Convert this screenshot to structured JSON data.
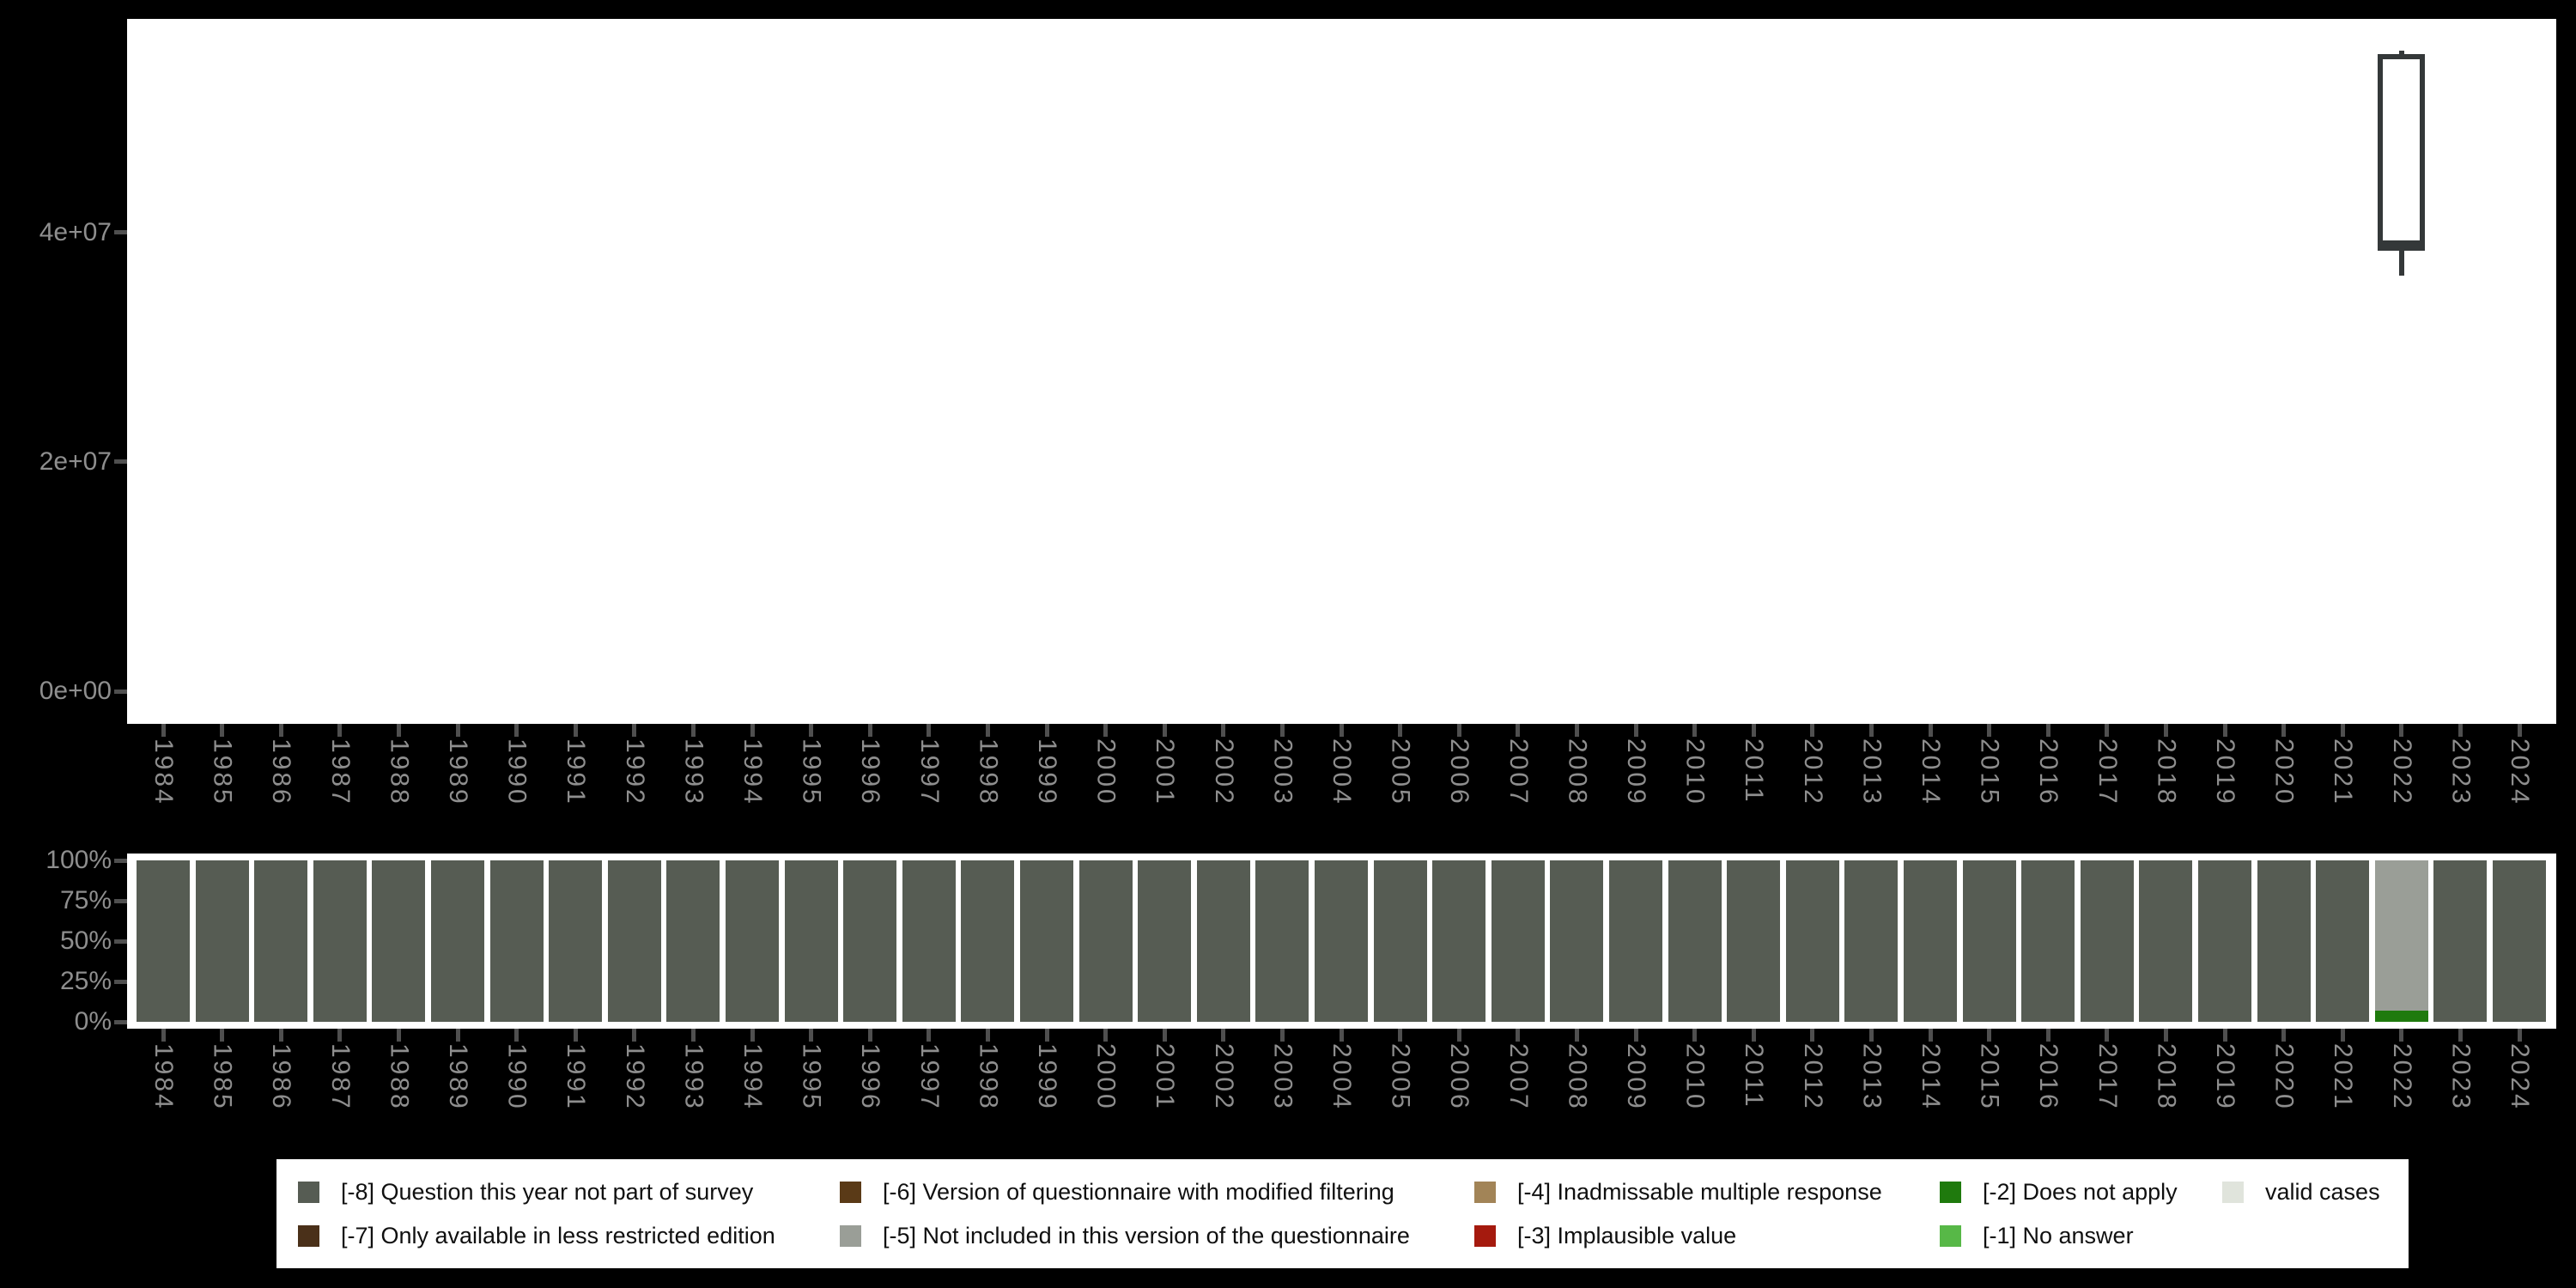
{
  "figure": {
    "background": "#000000",
    "panel_background": "#ffffff",
    "axis_text_color": "#8e8e8e",
    "tick_color": "#4f4f4f",
    "box_outline_color": "#343839"
  },
  "legend": {
    "entries": [
      {
        "key": "-8",
        "label": "[-8] Question this year not part of survey",
        "color": "#565c53"
      },
      {
        "key": "-7",
        "label": "[-7] Only available in less restricted edition",
        "color": "#4a3019"
      },
      {
        "key": "-6",
        "label": "[-6] Version of questionnaire with modified filtering",
        "color": "#5a3a17"
      },
      {
        "key": "-5",
        "label": "[-5] Not included in this version of the questionnaire",
        "color": "#9a9e97"
      },
      {
        "key": "-4",
        "label": "[-4] Inadmissable multiple response",
        "color": "#a28457"
      },
      {
        "key": "-3",
        "label": "[-3] Implausible value",
        "color": "#a51a0e"
      },
      {
        "key": "-2",
        "label": "[-2] Does not apply",
        "color": "#1f7a0d"
      },
      {
        "key": "-1",
        "label": "[-1] No answer",
        "color": "#57b847"
      },
      {
        "key": "valid",
        "label": "valid cases",
        "color": "#e0e4dc"
      }
    ],
    "columns": [
      [
        "-8",
        "-7"
      ],
      [
        "-6",
        "-5"
      ],
      [
        "-4",
        "-3"
      ],
      [
        "-2",
        "-1"
      ],
      [
        "valid"
      ]
    ]
  },
  "chart_data": [
    {
      "type": "boxplot",
      "title": "",
      "xlabel": "",
      "ylabel": "",
      "ytick_labels": [
        "0e+00",
        "2e+07",
        "4e+07"
      ],
      "ytick_values": [
        0,
        20000000,
        40000000
      ],
      "ylim": [
        -2840000,
        58600000
      ],
      "grid": false,
      "categories": [
        "1984",
        "1985",
        "1986",
        "1987",
        "1988",
        "1989",
        "1990",
        "1991",
        "1992",
        "1993",
        "1994",
        "1995",
        "1996",
        "1997",
        "1998",
        "1999",
        "2000",
        "2001",
        "2002",
        "2003",
        "2004",
        "2005",
        "2006",
        "2007",
        "2008",
        "2009",
        "2010",
        "2011",
        "2012",
        "2013",
        "2014",
        "2015",
        "2016",
        "2017",
        "2018",
        "2019",
        "2020",
        "2021",
        "2022",
        "2023",
        "2024"
      ],
      "boxes": [
        {
          "category": "2022",
          "ymin": 36200000,
          "lower": 38400000,
          "median": 39000000,
          "upper": 55500000,
          "ymax": 55800000
        }
      ]
    },
    {
      "type": "bar",
      "stacked": true,
      "unit": "percent",
      "title": "",
      "xlabel": "",
      "ylabel": "",
      "ytick_labels": [
        "0%",
        "25%",
        "50%",
        "75%",
        "100%"
      ],
      "ytick_values": [
        0,
        25,
        50,
        75,
        100
      ],
      "ylim": [
        0,
        100
      ],
      "grid": false,
      "segment_order": "top-to-bottom",
      "bars": [
        {
          "year": "1984",
          "segments": [
            {
              "key": "-8",
              "pct": 100
            }
          ]
        },
        {
          "year": "1985",
          "segments": [
            {
              "key": "-8",
              "pct": 100
            }
          ]
        },
        {
          "year": "1986",
          "segments": [
            {
              "key": "-8",
              "pct": 100
            }
          ]
        },
        {
          "year": "1987",
          "segments": [
            {
              "key": "-8",
              "pct": 100
            }
          ]
        },
        {
          "year": "1988",
          "segments": [
            {
              "key": "-8",
              "pct": 100
            }
          ]
        },
        {
          "year": "1989",
          "segments": [
            {
              "key": "-8",
              "pct": 100
            }
          ]
        },
        {
          "year": "1990",
          "segments": [
            {
              "key": "-8",
              "pct": 100
            }
          ]
        },
        {
          "year": "1991",
          "segments": [
            {
              "key": "-8",
              "pct": 100
            }
          ]
        },
        {
          "year": "1992",
          "segments": [
            {
              "key": "-8",
              "pct": 100
            }
          ]
        },
        {
          "year": "1993",
          "segments": [
            {
              "key": "-8",
              "pct": 100
            }
          ]
        },
        {
          "year": "1994",
          "segments": [
            {
              "key": "-8",
              "pct": 100
            }
          ]
        },
        {
          "year": "1995",
          "segments": [
            {
              "key": "-8",
              "pct": 100
            }
          ]
        },
        {
          "year": "1996",
          "segments": [
            {
              "key": "-8",
              "pct": 100
            }
          ]
        },
        {
          "year": "1997",
          "segments": [
            {
              "key": "-8",
              "pct": 100
            }
          ]
        },
        {
          "year": "1998",
          "segments": [
            {
              "key": "-8",
              "pct": 100
            }
          ]
        },
        {
          "year": "1999",
          "segments": [
            {
              "key": "-8",
              "pct": 100
            }
          ]
        },
        {
          "year": "2000",
          "segments": [
            {
              "key": "-8",
              "pct": 100
            }
          ]
        },
        {
          "year": "2001",
          "segments": [
            {
              "key": "-8",
              "pct": 100
            }
          ]
        },
        {
          "year": "2002",
          "segments": [
            {
              "key": "-8",
              "pct": 100
            }
          ]
        },
        {
          "year": "2003",
          "segments": [
            {
              "key": "-8",
              "pct": 100
            }
          ]
        },
        {
          "year": "2004",
          "segments": [
            {
              "key": "-8",
              "pct": 100
            }
          ]
        },
        {
          "year": "2005",
          "segments": [
            {
              "key": "-8",
              "pct": 100
            }
          ]
        },
        {
          "year": "2006",
          "segments": [
            {
              "key": "-8",
              "pct": 100
            }
          ]
        },
        {
          "year": "2007",
          "segments": [
            {
              "key": "-8",
              "pct": 100
            }
          ]
        },
        {
          "year": "2008",
          "segments": [
            {
              "key": "-8",
              "pct": 100
            }
          ]
        },
        {
          "year": "2009",
          "segments": [
            {
              "key": "-8",
              "pct": 100
            }
          ]
        },
        {
          "year": "2010",
          "segments": [
            {
              "key": "-8",
              "pct": 100
            }
          ]
        },
        {
          "year": "2011",
          "segments": [
            {
              "key": "-8",
              "pct": 100
            }
          ]
        },
        {
          "year": "2012",
          "segments": [
            {
              "key": "-8",
              "pct": 100
            }
          ]
        },
        {
          "year": "2013",
          "segments": [
            {
              "key": "-8",
              "pct": 100
            }
          ]
        },
        {
          "year": "2014",
          "segments": [
            {
              "key": "-8",
              "pct": 100
            }
          ]
        },
        {
          "year": "2015",
          "segments": [
            {
              "key": "-8",
              "pct": 100
            }
          ]
        },
        {
          "year": "2016",
          "segments": [
            {
              "key": "-8",
              "pct": 100
            }
          ]
        },
        {
          "year": "2017",
          "segments": [
            {
              "key": "-8",
              "pct": 100
            }
          ]
        },
        {
          "year": "2018",
          "segments": [
            {
              "key": "-8",
              "pct": 100
            }
          ]
        },
        {
          "year": "2019",
          "segments": [
            {
              "key": "-8",
              "pct": 100
            }
          ]
        },
        {
          "year": "2020",
          "segments": [
            {
              "key": "-8",
              "pct": 100
            }
          ]
        },
        {
          "year": "2021",
          "segments": [
            {
              "key": "-8",
              "pct": 100
            }
          ]
        },
        {
          "year": "2022",
          "segments": [
            {
              "key": "-5",
              "pct": 93
            },
            {
              "key": "-2",
              "pct": 7
            }
          ]
        },
        {
          "year": "2023",
          "segments": [
            {
              "key": "-8",
              "pct": 100
            }
          ]
        },
        {
          "year": "2024",
          "segments": [
            {
              "key": "-8",
              "pct": 100
            }
          ]
        }
      ]
    }
  ]
}
